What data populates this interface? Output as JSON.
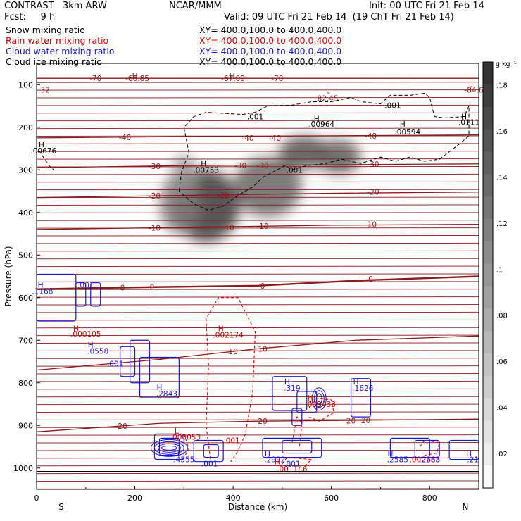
{
  "header": {
    "model": "CONTRAST   3km ARW",
    "org": "NCAR/MMM",
    "init": "Init: 00 UTC Fri 21 Feb 14",
    "fcst": "Fcst:     9 h",
    "valid": "Valid: 09 UTC Fri 21 Feb 14  (19 ChT Fri 21 Feb 14)"
  },
  "fields": [
    {
      "name": "Snow mixing ratio",
      "xy": "XY= 400.0,100.0 to 400.0,400.0",
      "color": "#000000"
    },
    {
      "name": "Rain water mixing ratio",
      "xy": "XY= 400.0,100.0 to 400.0,400.0",
      "color": "#d40000"
    },
    {
      "name": "Cloud water mixing ratio",
      "xy": "XY= 400.0,100.0 to 400.0,400.0",
      "color": "#1a1acc"
    },
    {
      "name": "Cloud ice mixing ratio",
      "xy": "XY= 400.0,100.0 to 400.0,400.0",
      "color": "#000000"
    }
  ],
  "chart_data": {
    "type": "heatmap",
    "xlabel": "Distance (km)",
    "ylabel": "Pressure (hPa)",
    "xlim": [
      0,
      900
    ],
    "ylim": [
      1050,
      50
    ],
    "xticks": [
      "0",
      "200",
      "400",
      "600",
      "800"
    ],
    "xtick_values": [
      0,
      200,
      400,
      600,
      800
    ],
    "yticks": [
      "100",
      "200",
      "300",
      "400",
      "500",
      "600",
      "700",
      "800",
      "900",
      "1000"
    ],
    "ytick_values": [
      100,
      200,
      300,
      400,
      500,
      600,
      700,
      800,
      900,
      1000
    ],
    "endpoint_left": "S",
    "endpoint_right": "N",
    "colorbar": {
      "unit": "g kg⁻¹",
      "ticks": [
        ".02",
        ".04",
        ".06",
        ".08",
        ".1",
        ".12",
        ".14",
        ".16",
        ".18"
      ],
      "values": [
        0.02,
        0.04,
        0.06,
        0.08,
        0.1,
        0.12,
        0.14,
        0.16,
        0.18
      ],
      "min": 0.005,
      "max": 0.19
    },
    "snow_blobs": [
      {
        "x": 345,
        "p": 385,
        "rx": 68,
        "rp": 85,
        "value": 0.18
      },
      {
        "x": 290,
        "p": 380,
        "rx": 40,
        "rp": 70,
        "value": 0.12
      },
      {
        "x": 470,
        "p": 340,
        "rx": 70,
        "rp": 70,
        "value": 0.14
      },
      {
        "x": 545,
        "p": 260,
        "rx": 52,
        "rp": 38,
        "value": 0.16
      },
      {
        "x": 615,
        "p": 270,
        "rx": 45,
        "rp": 40,
        "value": 0.15
      },
      {
        "x": 300,
        "p": 310,
        "rx": 25,
        "rp": 45,
        "value": 0.1
      }
    ],
    "temperature_lines": [
      {
        "label": "-70",
        "label_x": 120,
        "points": [
          [
            0,
            85
          ],
          [
            900,
            85
          ]
        ]
      },
      {
        "label": "-40",
        "label_x": 180,
        "points": [
          [
            0,
            225
          ],
          [
            300,
            222
          ],
          [
            600,
            220
          ],
          [
            900,
            218
          ]
        ]
      },
      {
        "label": "-30",
        "label_x": 240,
        "points": [
          [
            0,
            295
          ],
          [
            300,
            290
          ],
          [
            600,
            288
          ],
          [
            900,
            286
          ]
        ]
      },
      {
        "label": "-20",
        "label_x": 240,
        "points": [
          [
            0,
            365
          ],
          [
            300,
            360
          ],
          [
            600,
            355
          ],
          [
            900,
            352
          ]
        ]
      },
      {
        "label": "-10",
        "label_x": 240,
        "points": [
          [
            0,
            440
          ],
          [
            300,
            435
          ],
          [
            600,
            430
          ],
          [
            900,
            428
          ]
        ]
      },
      {
        "label": "0",
        "label_x": 175,
        "points": [
          [
            0,
            580
          ],
          [
            250,
            575
          ],
          [
            450,
            572
          ],
          [
            650,
            560
          ],
          [
            900,
            550
          ]
        ]
      },
      {
        "label": "10",
        "label_x": 400,
        "points": [
          [
            0,
            770
          ],
          [
            250,
            745
          ],
          [
            450,
            720
          ],
          [
            650,
            700
          ],
          [
            900,
            690
          ]
        ]
      },
      {
        "label": "20",
        "label_x": 175,
        "points": [
          [
            0,
            915
          ],
          [
            250,
            895
          ],
          [
            450,
            890
          ],
          [
            650,
            888
          ],
          [
            900,
            885
          ]
        ]
      }
    ],
    "labels": [
      {
        "text": "-66.85",
        "x": 205,
        "p": 85,
        "color": "#8b1a1a"
      },
      {
        "text": "-67.09",
        "x": 400,
        "p": 85,
        "color": "#8b1a1a"
      },
      {
        "text": "-70",
        "x": 490,
        "p": 85,
        "color": "#8b1a1a"
      },
      {
        "text": ".32",
        "x": 15,
        "p": 112,
        "color": "#8b1a1a"
      },
      {
        "text": "-82.45",
        "x": 590,
        "p": 132,
        "color": "#8b1a1a"
      },
      {
        "text": "-84.6",
        "x": 890,
        "p": 112,
        "color": "#8b1a1a"
      },
      {
        "text": "-40",
        "x": 430,
        "p": 225,
        "color": "#8b1a1a"
      },
      {
        "text": "-40",
        "x": 485,
        "p": 225,
        "color": "#8b1a1a"
      },
      {
        "text": "-40",
        "x": 680,
        "p": 220,
        "color": "#8b1a1a"
      },
      {
        "text": "-30",
        "x": 415,
        "p": 290,
        "color": "#8b1a1a"
      },
      {
        "text": "-30",
        "x": 460,
        "p": 290,
        "color": "#8b1a1a"
      },
      {
        "text": "-30",
        "x": 685,
        "p": 286,
        "color": "#8b1a1a"
      },
      {
        "text": "-20",
        "x": 380,
        "p": 360,
        "color": "#8b1a1a"
      },
      {
        "text": "-20",
        "x": 685,
        "p": 352,
        "color": "#8b1a1a"
      },
      {
        "text": "-10",
        "x": 390,
        "p": 435,
        "color": "#8b1a1a"
      },
      {
        "text": "-10",
        "x": 460,
        "p": 432,
        "color": "#8b1a1a"
      },
      {
        "text": "-10",
        "x": 680,
        "p": 428,
        "color": "#8b1a1a"
      },
      {
        "text": "0",
        "x": 235,
        "p": 575,
        "color": "#8b1a1a"
      },
      {
        "text": "0",
        "x": 460,
        "p": 572,
        "color": "#8b1a1a"
      },
      {
        "text": "0",
        "x": 680,
        "p": 556,
        "color": "#8b1a1a"
      },
      {
        "text": "10",
        "x": 460,
        "p": 720,
        "color": "#8b1a1a"
      },
      {
        "text": "20",
        "x": 460,
        "p": 890,
        "color": "#8b1a1a"
      },
      {
        "text": "20",
        "x": 640,
        "p": 889,
        "color": "#8b1a1a"
      },
      {
        "text": "20",
        "x": 670,
        "p": 888,
        "color": "#8b1a1a"
      },
      {
        "text": "H",
        "x": 200,
        "p": 80,
        "color": "#8b1a1a"
      },
      {
        "text": "H",
        "x": 398,
        "p": 80,
        "color": "#8b1a1a"
      },
      {
        "text": "L",
        "x": 593,
        "p": 114,
        "color": "#8b1a1a"
      },
      {
        "text": "L",
        "x": 884,
        "p": 99,
        "color": "#8b1a1a"
      },
      {
        "text": "H",
        "x": 10,
        "p": 240,
        "color": "#000000"
      },
      {
        "text": ".00676",
        "x": 14,
        "p": 255,
        "color": "#000000"
      },
      {
        "text": ".001",
        "x": 445,
        "p": 175,
        "color": "#000000"
      },
      {
        "text": "H",
        "x": 570,
        "p": 180,
        "color": "#000000"
      },
      {
        "text": ".00964",
        "x": 580,
        "p": 192,
        "color": "#000000"
      },
      {
        "text": ".001",
        "x": 725,
        "p": 148,
        "color": "#000000"
      },
      {
        "text": "H",
        "x": 745,
        "p": 192,
        "color": "#000000"
      },
      {
        "text": ".00594",
        "x": 755,
        "p": 210,
        "color": "#000000"
      },
      {
        "text": "H",
        "x": 870,
        "p": 175,
        "color": "#000000"
      },
      {
        "text": ".0111",
        "x": 880,
        "p": 188,
        "color": "#000000"
      },
      {
        "text": "H",
        "x": 340,
        "p": 285,
        "color": "#000000"
      },
      {
        "text": ".00753",
        "x": 345,
        "p": 300,
        "color": "#000000"
      },
      {
        "text": ".001",
        "x": 525,
        "p": 300,
        "color": "#000000"
      },
      {
        "text": "H",
        "x": 8,
        "p": 570,
        "color": "#1a1acc"
      },
      {
        "text": ".1168",
        "x": 12,
        "p": 585,
        "color": "#1a1acc"
      },
      {
        "text": ".001",
        "x": 100,
        "p": 570,
        "color": "#1a1acc"
      },
      {
        "text": "H",
        "x": 80,
        "p": 672,
        "color": "#d40000"
      },
      {
        "text": ".000105",
        "x": 100,
        "p": 685,
        "color": "#d40000"
      },
      {
        "text": "H",
        "x": 375,
        "p": 672,
        "color": "#d40000"
      },
      {
        "text": ".002174",
        "x": 390,
        "p": 687,
        "color": "#d40000"
      },
      {
        "text": "H",
        "x": 110,
        "p": 710,
        "color": "#1a1acc"
      },
      {
        "text": ".0558",
        "x": 125,
        "p": 725,
        "color": "#1a1acc"
      },
      {
        "text": ".001",
        "x": 160,
        "p": 755,
        "color": "#1a1acc"
      },
      {
        "text": "H",
        "x": 250,
        "p": 810,
        "color": "#1a1acc"
      },
      {
        "text": ".2843",
        "x": 265,
        "p": 825,
        "color": "#1a1acc"
      },
      {
        "text": "H",
        "x": 510,
        "p": 797,
        "color": "#1a1acc"
      },
      {
        "text": ".319",
        "x": 520,
        "p": 812,
        "color": "#1a1acc"
      },
      {
        "text": "H",
        "x": 557,
        "p": 835,
        "color": "#d40000"
      },
      {
        "text": ".003433",
        "x": 578,
        "p": 850,
        "color": "#d40000"
      },
      {
        "text": "H",
        "x": 650,
        "p": 797,
        "color": "#1a1acc"
      },
      {
        "text": ".1626",
        "x": 664,
        "p": 812,
        "color": "#1a1acc"
      },
      {
        "text": "L",
        "x": 285,
        "p": 912,
        "color": "#d40000"
      },
      {
        "text": ".000053",
        "x": 303,
        "p": 927,
        "color": "#d40000"
      },
      {
        "text": ".001",
        "x": 397,
        "p": 935,
        "color": "#d40000"
      },
      {
        "text": "H",
        "x": 285,
        "p": 965,
        "color": "#1a1acc"
      },
      {
        "text": ".4555",
        "x": 300,
        "p": 980,
        "color": "#1a1acc"
      },
      {
        "text": ".001",
        "x": 352,
        "p": 990,
        "color": "#1a1acc"
      },
      {
        "text": "H",
        "x": 470,
        "p": 965,
        "color": "#1a1acc"
      },
      {
        "text": ".2992",
        "x": 485,
        "p": 980,
        "color": "#1a1acc"
      },
      {
        "text": "H",
        "x": 490,
        "p": 985,
        "color": "#d40000"
      },
      {
        "text": ".001",
        "x": 520,
        "p": 990,
        "color": "#1a1acc"
      },
      {
        "text": ".001146",
        "x": 520,
        "p": 1002,
        "color": "#d40000"
      },
      {
        "text": "H",
        "x": 720,
        "p": 965,
        "color": "#1a1acc"
      },
      {
        "text": ".2585",
        "x": 735,
        "p": 980,
        "color": "#1a1acc"
      },
      {
        "text": ".000283",
        "x": 790,
        "p": 980,
        "color": "#d40000"
      },
      {
        "text": ".2668",
        "x": 800,
        "p": 980,
        "color": "#1a1acc"
      },
      {
        "text": "H",
        "x": 880,
        "p": 965,
        "color": "#1a1acc"
      },
      {
        "text": ".21",
        "x": 888,
        "p": 980,
        "color": "#1a1acc"
      }
    ]
  }
}
